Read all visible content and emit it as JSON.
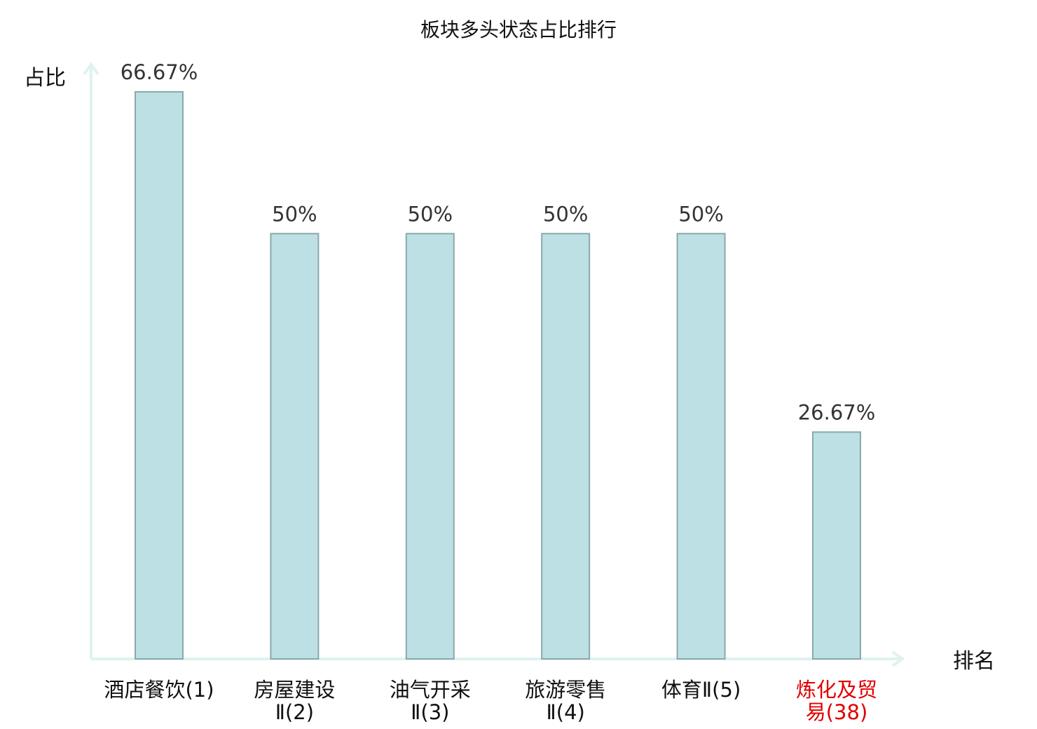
{
  "chart_data": {
    "type": "bar",
    "title": "板块多头状态占比排行",
    "xlabel": "排名",
    "ylabel": "占比",
    "categories": [
      [
        "酒店餐饮(1)"
      ],
      [
        "房屋建设",
        "Ⅱ(2)"
      ],
      [
        "油气开采",
        "Ⅱ(3)"
      ],
      [
        "旅游零售",
        "Ⅱ(4)"
      ],
      [
        "体育Ⅱ(5)"
      ],
      [
        "炼化及贸",
        "易(38)"
      ]
    ],
    "values": [
      66.67,
      50,
      50,
      50,
      50,
      26.67
    ],
    "value_labels": [
      "66.67%",
      "50%",
      "50%",
      "50%",
      "50%",
      "26.67%"
    ],
    "highlight_index": 5,
    "ylim": [
      0,
      66.67
    ],
    "grid": false,
    "colors": {
      "bar_fill": "#bce0e3",
      "bar_stroke": "#8aa9ac",
      "axis": "#dff2ef",
      "highlight_label": "#e00000"
    }
  }
}
